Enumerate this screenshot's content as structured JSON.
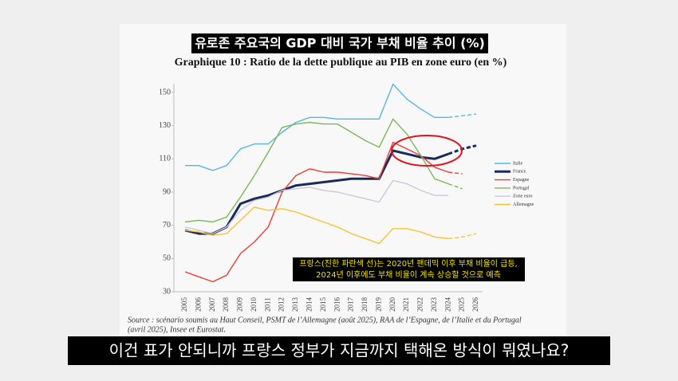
{
  "overlay_title": "유로존 주요국의 GDP 대비 국가 부채 비율 추이 (%)",
  "caption": "이건 표가 안되니까 프랑스 정부가 지금까지 택해온 방식이 뭐였나요?",
  "chart_data": {
    "type": "line",
    "title": "Graphique 10 : Ratio de la dette publique au PIB en zone euro (en %)",
    "annotation": [
      "프랑스(진한 파란색 선)는 2020년 팬데믹 이후 부채 비율이 급등,",
      "2024년 이후에도 부채 비율이 계속 상승할 것으로 예측"
    ],
    "source": [
      "Source : scénario soumis au Haut Conseil, PSMT de l’Allemagne (août 2025), RAA de l’Espagne, de l’Italie et du Portugal",
      "(avril 2025), Insee et Eurostat."
    ],
    "categories": [
      "2005",
      "2006",
      "2007",
      "2008",
      "2009",
      "2010",
      "2011",
      "2012",
      "2013",
      "2014",
      "2015",
      "2016",
      "2017",
      "2018",
      "2019",
      "2020",
      "2021",
      "2022",
      "2023",
      "2024",
      "2025",
      "2026"
    ],
    "projection_start": "2024",
    "series": [
      {
        "name": "Italie",
        "color": "#55b6e6",
        "width": 1.4,
        "values": [
          106,
          106,
          103,
          106,
          116,
          119,
          119,
          126,
          132,
          135,
          135,
          134,
          134,
          134,
          134,
          155,
          146,
          140,
          135,
          135,
          136,
          137
        ]
      },
      {
        "name": "France",
        "color": "#1c2a5a",
        "width": 3,
        "values": [
          67,
          65,
          65,
          69,
          83,
          86,
          88,
          91,
          94,
          95,
          96,
          97,
          98,
          98,
          98,
          115,
          113,
          111,
          110,
          113,
          116,
          118
        ]
      },
      {
        "name": "Espagne",
        "color": "#ee3b34",
        "width": 1.4,
        "values": [
          42,
          39,
          36,
          40,
          53,
          60,
          69,
          90,
          100,
          104,
          102,
          102,
          101,
          100,
          98,
          120,
          116,
          112,
          105,
          102,
          101,
          null
        ]
      },
      {
        "name": "Portugal",
        "color": "#7db65a",
        "width": 1.4,
        "values": [
          72,
          73,
          72,
          75,
          87,
          100,
          114,
          129,
          131,
          132,
          131,
          131,
          126,
          121,
          117,
          134,
          125,
          112,
          98,
          95,
          92,
          null
        ]
      },
      {
        "name": "Zone euro",
        "color": "#c9c9dc",
        "width": 1.4,
        "values": [
          69,
          67,
          65,
          69,
          79,
          85,
          87,
          91,
          92,
          93,
          91,
          90,
          88,
          86,
          84,
          97,
          95,
          91,
          88,
          88,
          null,
          null
        ]
      },
      {
        "name": "Allemagne",
        "color": "#f7c233",
        "width": 1.4,
        "values": [
          67,
          66,
          64,
          65,
          73,
          81,
          79,
          80,
          78,
          75,
          72,
          69,
          65,
          62,
          59,
          68,
          68,
          66,
          63,
          62,
          63,
          65
        ]
      }
    ],
    "ylim": [
      30,
      150
    ],
    "yticks": [
      30,
      50,
      70,
      90,
      110,
      130,
      150
    ],
    "grid": false,
    "legend": "right"
  }
}
